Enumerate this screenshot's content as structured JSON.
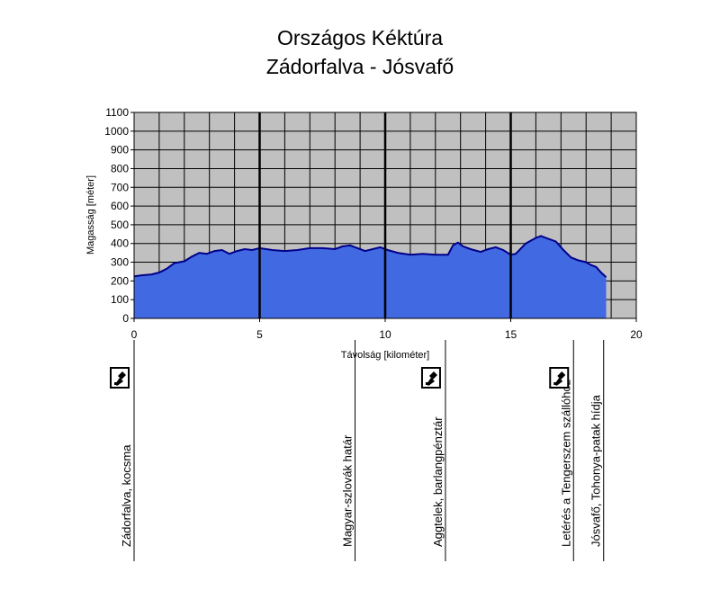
{
  "chart_data": {
    "type": "area",
    "title": "Országos Kéktúra",
    "subtitle": "Zádorfalva - Jósvafő",
    "xlabel": "Távolság [kilométer]",
    "ylabel": "Magasság [méter]",
    "xlim": [
      0,
      20
    ],
    "ylim": [
      0,
      1100
    ],
    "x_ticks": [
      "0",
      "5",
      "10",
      "15",
      "20"
    ],
    "y_ticks": [
      "0",
      "100",
      "200",
      "300",
      "400",
      "500",
      "600",
      "700",
      "800",
      "900",
      "1000",
      "1100"
    ],
    "grid": true,
    "background": "#c0c0c0",
    "fill_color": "#4169e1",
    "line_color": "#00008b",
    "x": [
      0,
      0.3,
      0.7,
      1.0,
      1.3,
      1.6,
      2.0,
      2.3,
      2.6,
      2.9,
      3.2,
      3.5,
      3.8,
      4.1,
      4.4,
      4.7,
      5.0,
      5.5,
      6.0,
      6.5,
      7.0,
      7.5,
      8.0,
      8.3,
      8.6,
      8.9,
      9.2,
      9.5,
      9.8,
      10.1,
      10.5,
      11.0,
      11.5,
      12.0,
      12.5,
      12.7,
      12.9,
      13.1,
      13.4,
      13.8,
      14.1,
      14.4,
      14.7,
      15.0,
      15.2,
      15.6,
      16.0,
      16.2,
      16.5,
      16.8,
      17.1,
      17.4,
      17.7,
      18.0,
      18.2,
      18.4,
      18.6,
      18.8
    ],
    "y": [
      225,
      230,
      235,
      245,
      265,
      295,
      305,
      330,
      350,
      345,
      360,
      365,
      345,
      360,
      370,
      365,
      375,
      365,
      360,
      365,
      375,
      375,
      370,
      385,
      390,
      375,
      360,
      370,
      380,
      365,
      350,
      340,
      345,
      340,
      340,
      390,
      405,
      385,
      370,
      355,
      370,
      380,
      365,
      340,
      345,
      400,
      430,
      440,
      425,
      410,
      365,
      325,
      310,
      300,
      285,
      275,
      245,
      220
    ],
    "section_lines_x": [
      5,
      10,
      15
    ],
    "waypoints": [
      {
        "km": 0.0,
        "label": "Zádorfalva, kocsma",
        "stamp": true
      },
      {
        "km": 8.8,
        "label": "Magyar-szlovák határ",
        "stamp": false
      },
      {
        "km": 12.4,
        "label": "Aggtelek, barlangpénztár",
        "stamp": true
      },
      {
        "km": 17.5,
        "label": "Letérés a Tengerszem szállóhoz",
        "stamp": true
      },
      {
        "km": 18.7,
        "label": "Jósvafő, Tohonya-patak hídja",
        "stamp": false
      }
    ]
  }
}
